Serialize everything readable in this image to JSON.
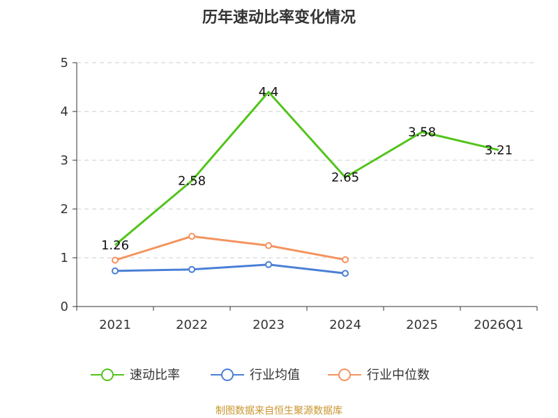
{
  "chart_data": {
    "type": "line",
    "title": "历年速动比率变化情况",
    "categories": [
      "2021",
      "2022",
      "2023",
      "2024",
      "2025",
      "2026Q1"
    ],
    "yticks": [
      "0",
      "1",
      "2",
      "3",
      "4",
      "5"
    ],
    "ylim": [
      0,
      5
    ],
    "grid": true,
    "legend_position": "bottom",
    "series": [
      {
        "name": "速动比率",
        "color": "#52c41a",
        "values": [
          1.26,
          2.58,
          4.4,
          2.65,
          3.58,
          3.21
        ],
        "labels": [
          "1.26",
          "2.58",
          "4.4",
          "2.65",
          "3.58",
          "3.21"
        ]
      },
      {
        "name": "行业均值",
        "color": "#4a7fd6",
        "values": [
          0.73,
          0.76,
          0.86,
          0.68,
          null,
          null
        ]
      },
      {
        "name": "行业中位数",
        "color": "#f4935e",
        "values": [
          0.95,
          1.44,
          1.25,
          0.96,
          null,
          null
        ]
      }
    ]
  },
  "source_text": "制图数据来自恒生聚源数据库"
}
